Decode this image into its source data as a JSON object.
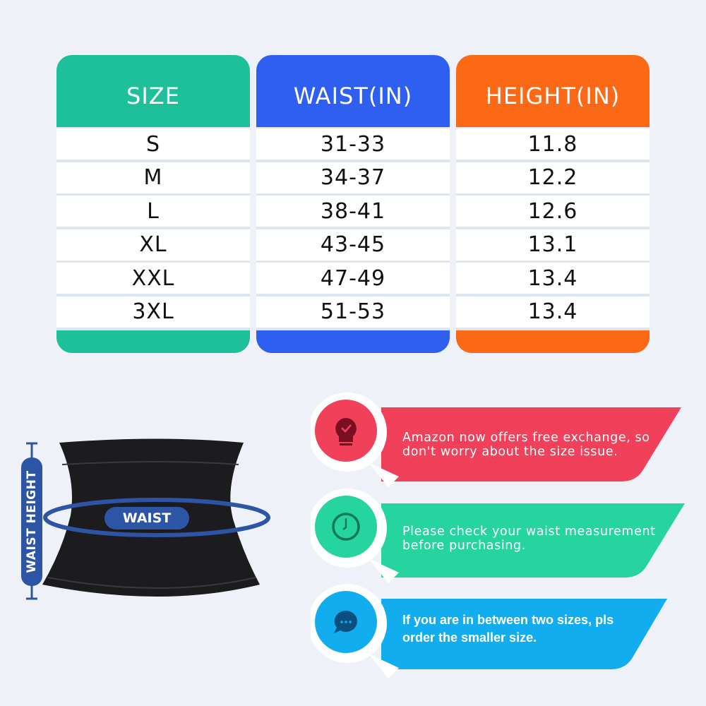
{
  "size_table": {
    "columns": [
      {
        "header": "SIZE",
        "color": "#1ebf9b",
        "values": [
          "S",
          "M",
          "L",
          "XL",
          "XXL",
          "3XL"
        ]
      },
      {
        "header": "WAIST(IN)",
        "color": "#2e5ff0",
        "values": [
          "31-33",
          "34-37",
          "38-41",
          "43-45",
          "47-49",
          "51-53"
        ]
      },
      {
        "header": "HEIGHT(IN)",
        "color": "#fb6916",
        "values": [
          "11.8",
          "12.2",
          "12.6",
          "13.1",
          "13.4",
          "13.4"
        ]
      }
    ]
  },
  "diagram": {
    "waist_label": "WAIST",
    "height_label": "WAIST HEIGHT",
    "accent": "#2d55a5"
  },
  "tips": [
    {
      "icon": "lightbulb-check-icon",
      "color": "#f0405a",
      "text": "Amazon now offers free exchange, so don't worry about the size issue."
    },
    {
      "icon": "clock-icon",
      "color": "#26d4a0",
      "text": "Please check your waist measurement before purchasing."
    },
    {
      "icon": "chat-bubble-icon",
      "color": "#12adef",
      "text": "If you are in between two sizes, pls order the smaller size."
    }
  ]
}
